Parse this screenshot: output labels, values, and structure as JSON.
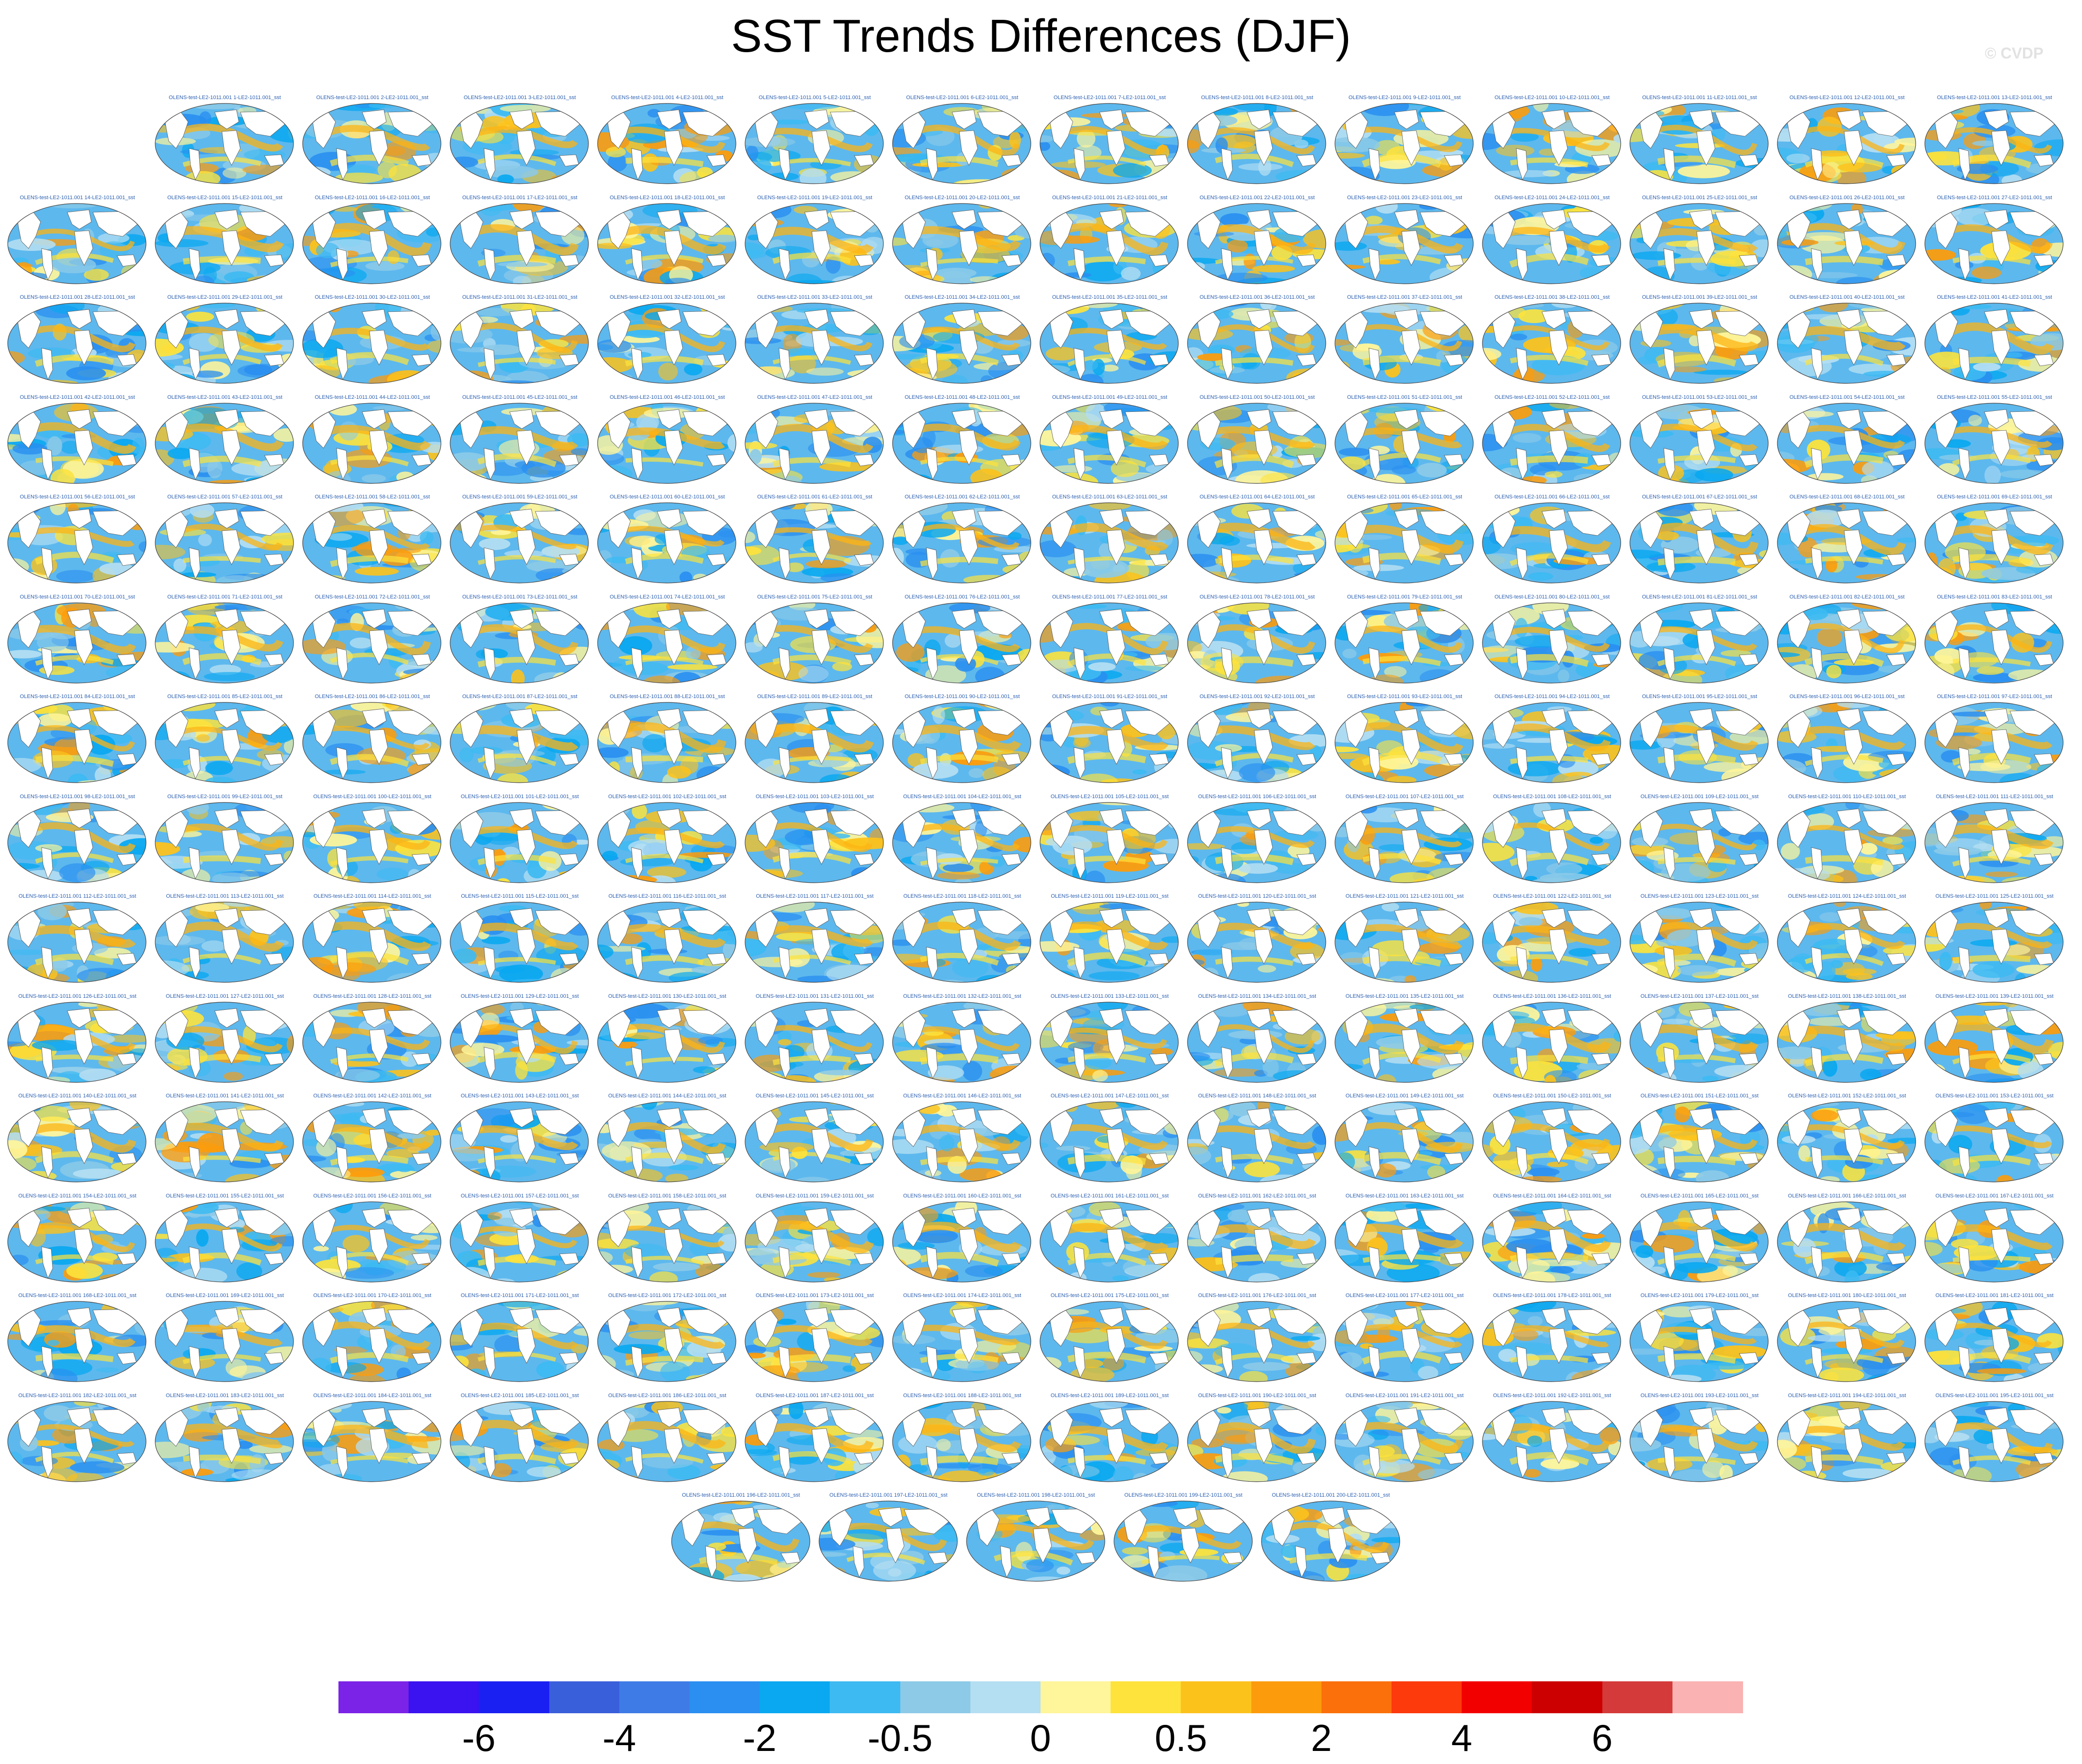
{
  "title": "SST Trends Differences (DJF)",
  "watermark": "© CVDP",
  "panel_title_prefix": "OLENS-test-LE2-1011.001",
  "panel_title_suffix": "-LE2-1011.001_sst",
  "panel_count": 200,
  "panel_rows": [
    {
      "first": 1,
      "count": 13,
      "offset": 1
    },
    {
      "first": 14,
      "count": 14,
      "offset": 0
    },
    {
      "first": 28,
      "count": 14,
      "offset": 0
    },
    {
      "first": 42,
      "count": 14,
      "offset": 0
    },
    {
      "first": 56,
      "count": 14,
      "offset": 0
    },
    {
      "first": 70,
      "count": 14,
      "offset": 0
    },
    {
      "first": 84,
      "count": 14,
      "offset": 0
    },
    {
      "first": 98,
      "count": 14,
      "offset": 0
    },
    {
      "first": 112,
      "count": 14,
      "offset": 0
    },
    {
      "first": 126,
      "count": 14,
      "offset": 0
    },
    {
      "first": 140,
      "count": 14,
      "offset": 0
    },
    {
      "first": 154,
      "count": 14,
      "offset": 0
    },
    {
      "first": 168,
      "count": 14,
      "offset": 0
    },
    {
      "first": 182,
      "count": 14,
      "offset": 0
    },
    {
      "first": 196,
      "count": 5,
      "offset": 4.5
    }
  ],
  "colorbar": {
    "colors": [
      "#7b23e6",
      "#3b12f0",
      "#1b20f2",
      "#3a5fdb",
      "#3e7be6",
      "#2a8ff0",
      "#0aa8f0",
      "#3dbaf2",
      "#8ccae8",
      "#b4def2",
      "#fff59a",
      "#fde33c",
      "#fcc21c",
      "#fc9c0c",
      "#fc700c",
      "#fc3a0c",
      "#f20000",
      "#cc0000",
      "#d43a3a",
      "#fab2b2"
    ],
    "labels": [
      {
        "text": "-6",
        "boundary": 2
      },
      {
        "text": "-4",
        "boundary": 4
      },
      {
        "text": "-2",
        "boundary": 6
      },
      {
        "text": "-0.5",
        "boundary": 8
      },
      {
        "text": "0",
        "boundary": 10
      },
      {
        "text": "0.5",
        "boundary": 12
      },
      {
        "text": "2",
        "boundary": 14
      },
      {
        "text": "4",
        "boundary": 16
      },
      {
        "text": "6",
        "boundary": 18
      }
    ]
  }
}
